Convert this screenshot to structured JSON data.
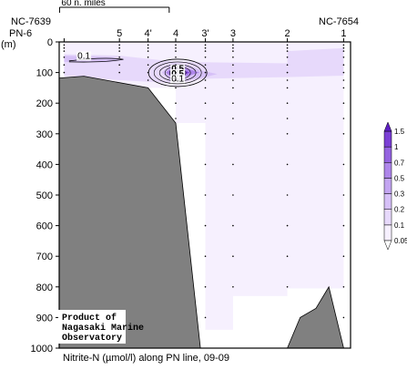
{
  "chart_data": {
    "type": "heatmap",
    "title": "Nitrite-N (µmol/l) along PN line, 09-09",
    "ylabel": "(m)",
    "ylim": [
      0,
      1000
    ],
    "y_ticks": [
      0,
      100,
      200,
      300,
      400,
      500,
      600,
      700,
      800,
      900,
      1000
    ],
    "stations": [
      {
        "label": "PN-6",
        "km": 0
      },
      {
        "label": "5",
        "km": 56
      },
      {
        "label": "4'",
        "km": 85
      },
      {
        "label": "4",
        "km": 113
      },
      {
        "label": "3'",
        "km": 143
      },
      {
        "label": "3",
        "km": 171
      },
      {
        "label": "2",
        "km": 226
      },
      {
        "label": "1",
        "km": 283
      }
    ],
    "xlim": [
      -5,
      290
    ],
    "end_labels": {
      "left": "NC-7639",
      "right": "NC-7654"
    },
    "scale_bar": {
      "label": "60 n. miles",
      "km": 111
    },
    "colorbar": {
      "levels": [
        0.05,
        0.1,
        0.2,
        0.3,
        0.5,
        0.7,
        1,
        1.5
      ],
      "colors": [
        "#f6f0fe",
        "#e7d9fb",
        "#d6c0f7",
        "#c3a5f1",
        "#ae86ea",
        "#9463e0",
        "#7b3fd5",
        "#5e1fc4"
      ]
    },
    "contour_labels": [
      "0.1",
      "0.5",
      "0.5",
      "0.1"
    ],
    "bathymetry": [
      [
        -5,
        118
      ],
      [
        20,
        112
      ],
      [
        85,
        150
      ],
      [
        113,
        265
      ],
      [
        138,
        1000
      ],
      [
        290,
        1000
      ],
      [
        283,
        1000
      ],
      [
        268,
        800
      ],
      [
        255,
        870
      ],
      [
        239,
        900
      ],
      [
        226,
        1000
      ],
      [
        -5,
        1000
      ]
    ],
    "credit": [
      "Product of",
      "Nagasaki Marine",
      "Observatory"
    ]
  }
}
